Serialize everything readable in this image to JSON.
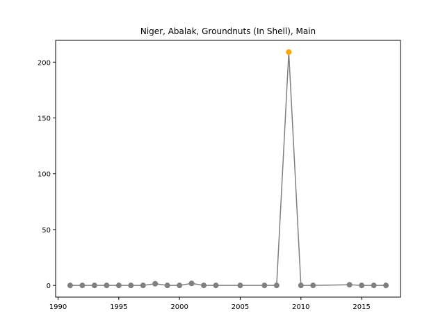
{
  "chart_data": {
    "type": "line",
    "title": "Niger, Abalak, Groundnuts (In Shell), Main",
    "xlabel": "",
    "ylabel": "",
    "xlim": [
      1989.8,
      2018.2
    ],
    "ylim": [
      -10.5,
      219.5
    ],
    "grid": false,
    "legend": false,
    "xticks": [
      1990,
      1995,
      2000,
      2005,
      2010,
      2015
    ],
    "yticks": [
      0,
      50,
      100,
      150,
      200
    ],
    "line_color": "#808080",
    "marker_color": "#808080",
    "highlight_color": "#FFA500",
    "series": [
      {
        "x": [
          1991,
          1992,
          1993,
          1994,
          1995,
          1996,
          1997,
          1998,
          1999,
          2000,
          2001,
          2002,
          2003,
          2005,
          2007,
          2008,
          2009,
          2010,
          2011,
          2014,
          2015,
          2016,
          2017
        ],
        "values": [
          0,
          0,
          0,
          0,
          0,
          0,
          0,
          1.5,
          0,
          0,
          1.8,
          0,
          0,
          0,
          0,
          0,
          209,
          0,
          0,
          0.6,
          0,
          0,
          0
        ]
      }
    ],
    "highlight": {
      "x": 2009,
      "value": 209
    }
  }
}
